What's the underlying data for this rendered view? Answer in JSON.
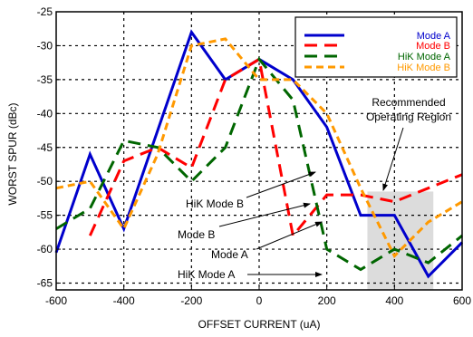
{
  "chart_data": {
    "type": "line",
    "title": "",
    "xlabel": "OFFSET CURRENT (uA)",
    "ylabel": "WORST SPUR (dBc)",
    "xlim": [
      -600,
      600
    ],
    "ylim": [
      -66,
      -25
    ],
    "x_ticks": [
      -600,
      -400,
      -200,
      0,
      200,
      400,
      600
    ],
    "y_ticks": [
      -25,
      -30,
      -35,
      -40,
      -45,
      -50,
      -55,
      -60,
      -65
    ],
    "grid": true,
    "legend_position": "top-right",
    "series": [
      {
        "name": "Mode A",
        "color": "#0000cc",
        "dash": "solid",
        "points": [
          [
            -600,
            -60.5
          ],
          [
            -500,
            -46
          ],
          [
            -400,
            -57
          ],
          [
            -200,
            -28
          ],
          [
            -100,
            -35
          ],
          [
            0,
            -32
          ],
          [
            100,
            -35
          ],
          [
            200,
            -42
          ],
          [
            300,
            -55
          ],
          [
            400,
            -55
          ],
          [
            500,
            -64
          ],
          [
            600,
            -59
          ]
        ]
      },
      {
        "name": "Mode B",
        "color": "#ff0000",
        "dash": "long-dash",
        "points": [
          [
            -500,
            -58
          ],
          [
            -400,
            -47
          ],
          [
            -300,
            -45
          ],
          [
            -200,
            -48
          ],
          [
            -100,
            -35
          ],
          [
            0,
            -32
          ],
          [
            100,
            -58
          ],
          [
            200,
            -52
          ],
          [
            300,
            -52
          ],
          [
            400,
            -53
          ],
          [
            500,
            -51
          ],
          [
            600,
            -49
          ]
        ]
      },
      {
        "name": "HiK Mode A",
        "color": "#006600",
        "dash": "long-dash",
        "points": [
          [
            -600,
            -57
          ],
          [
            -500,
            -54
          ],
          [
            -400,
            -44
          ],
          [
            -300,
            -45
          ],
          [
            -200,
            -50
          ],
          [
            -100,
            -45
          ],
          [
            0,
            -32
          ],
          [
            100,
            -38
          ],
          [
            200,
            -60
          ],
          [
            300,
            -63
          ],
          [
            400,
            -60
          ],
          [
            500,
            -62
          ],
          [
            600,
            -58
          ]
        ]
      },
      {
        "name": "HiK Mode B",
        "color": "#ff9900",
        "dash": "dash",
        "points": [
          [
            -600,
            -51
          ],
          [
            -500,
            -50
          ],
          [
            -400,
            -57
          ],
          [
            -300,
            -46
          ],
          [
            -200,
            -30
          ],
          [
            -100,
            -29
          ],
          [
            0,
            -35
          ],
          [
            100,
            -35
          ],
          [
            200,
            -40
          ],
          [
            300,
            -51
          ],
          [
            400,
            -61
          ],
          [
            500,
            -56
          ],
          [
            600,
            -53
          ]
        ]
      }
    ],
    "shaded_region": {
      "label": "Recommended Operating Region",
      "x": [
        320,
        515
      ],
      "y": [
        -66,
        -51.5
      ]
    },
    "annotations": [
      {
        "label": "Recommended Operating Region",
        "points_to": {
          "x": 385,
          "y": -51
        }
      },
      {
        "label": "HiK Mode B",
        "points_to": {
          "x": 265,
          "y": -48
        }
      },
      {
        "label": "Mode B",
        "points_to": {
          "x": 255,
          "y": -53
        }
      },
      {
        "label": "Mode A",
        "points_to": {
          "x": 275,
          "y": -55
        }
      },
      {
        "label": "HiK Mode A",
        "points_to": {
          "x": 265,
          "y": -62.5
        }
      }
    ]
  }
}
